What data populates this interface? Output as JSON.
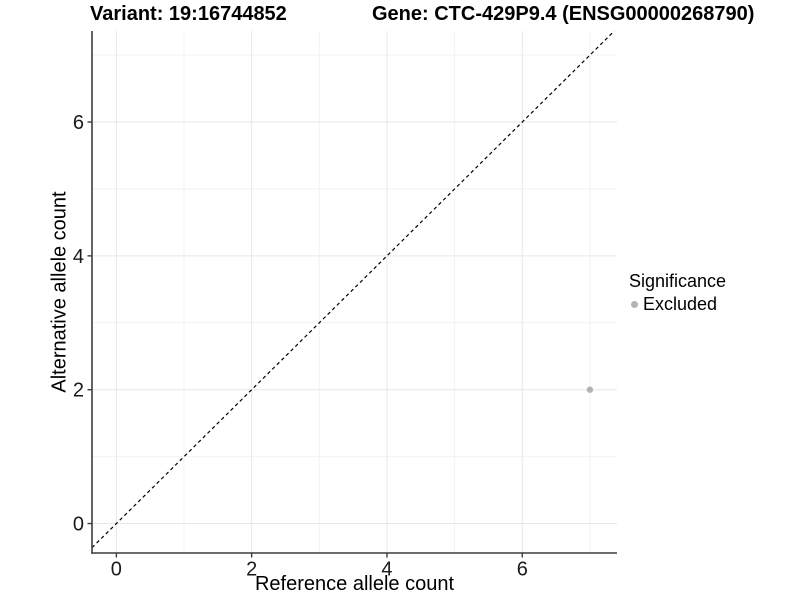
{
  "titles": {
    "variant": "Variant: 19:16744852",
    "gene": "Gene: CTC-429P9.4 (ENSG00000268790)"
  },
  "axes": {
    "x_label": "Reference allele count",
    "y_label": "Alternative allele count"
  },
  "legend": {
    "title": "Significance",
    "items": [
      {
        "label": "Excluded",
        "color": "#b3b3b3"
      }
    ]
  },
  "chart_data": {
    "type": "scatter",
    "title": "",
    "xlabel": "Reference allele count",
    "ylabel": "Alternative allele count",
    "xlim": [
      -0.36,
      7.4
    ],
    "ylim": [
      -0.44,
      7.36
    ],
    "x_ticks": [
      0,
      2,
      4,
      6
    ],
    "y_ticks": [
      0,
      2,
      4,
      6
    ],
    "x_minor_ticks": [
      1,
      3,
      5,
      7
    ],
    "y_minor_ticks": [
      1,
      3,
      5,
      7
    ],
    "grid": true,
    "legend_position": "right",
    "series": [
      {
        "name": "Excluded",
        "color": "#b3b3b3",
        "points": [
          {
            "x": 7,
            "y": 2
          }
        ]
      }
    ],
    "reference_line": {
      "type": "identity",
      "slope": 1,
      "intercept": 0,
      "style": "dashed",
      "color": "#000000"
    }
  },
  "colors": {
    "grid_major": "#e7e7e7",
    "grid_minor": "#f2f2f2",
    "axis_line": "#3d3d3d",
    "tick_text": "#1a1a1a",
    "background": "#ffffff"
  }
}
